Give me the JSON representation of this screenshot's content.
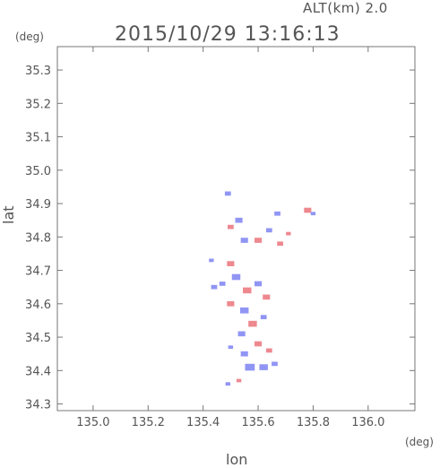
{
  "header": {
    "altitude_label": "ALT(km) 2.0",
    "timestamp": "2015/10/29 13:16:13"
  },
  "chart_data": {
    "type": "heatmap",
    "xlabel": "lon",
    "ylabel": "lat",
    "x_unit": "(deg)",
    "y_unit": "(deg)",
    "xlim": [
      134.87,
      136.17
    ],
    "ylim": [
      34.28,
      35.37
    ],
    "x_ticks": [
      135.0,
      135.2,
      135.4,
      135.6,
      135.8,
      136.0
    ],
    "x_tick_labels": [
      "135.0",
      "135.2",
      "135.4",
      "135.6",
      "135.8",
      "136.0"
    ],
    "y_ticks": [
      34.3,
      34.4,
      34.5,
      34.6,
      34.7,
      34.8,
      34.9,
      35.0,
      35.1,
      35.2,
      35.3
    ],
    "y_tick_labels": [
      "34.3",
      "34.4",
      "34.5",
      "34.6",
      "34.7",
      "34.8",
      "34.9",
      "35.0",
      "35.1",
      "35.2",
      "35.3"
    ],
    "colors": {
      "positive": "#e8606a",
      "negative": "#6b72f0",
      "axis": "#777777"
    },
    "regions": [
      {
        "lon": 135.49,
        "lat": 34.93,
        "sign": -1,
        "size": 0.01
      },
      {
        "lon": 135.53,
        "lat": 34.85,
        "sign": -1,
        "size": 0.012
      },
      {
        "lon": 135.55,
        "lat": 34.79,
        "sign": -1,
        "size": 0.012
      },
      {
        "lon": 135.5,
        "lat": 34.83,
        "sign": 1,
        "size": 0.01
      },
      {
        "lon": 135.6,
        "lat": 34.79,
        "sign": 1,
        "size": 0.012
      },
      {
        "lon": 135.64,
        "lat": 34.82,
        "sign": -1,
        "size": 0.01
      },
      {
        "lon": 135.67,
        "lat": 34.87,
        "sign": -1,
        "size": 0.01
      },
      {
        "lon": 135.68,
        "lat": 34.78,
        "sign": 1,
        "size": 0.01
      },
      {
        "lon": 135.71,
        "lat": 34.81,
        "sign": 1,
        "size": 0.008
      },
      {
        "lon": 135.78,
        "lat": 34.88,
        "sign": 1,
        "size": 0.012
      },
      {
        "lon": 135.8,
        "lat": 34.87,
        "sign": -1,
        "size": 0.008
      },
      {
        "lon": 135.43,
        "lat": 34.73,
        "sign": -1,
        "size": 0.008
      },
      {
        "lon": 135.5,
        "lat": 34.72,
        "sign": 1,
        "size": 0.012
      },
      {
        "lon": 135.52,
        "lat": 34.68,
        "sign": -1,
        "size": 0.014
      },
      {
        "lon": 135.47,
        "lat": 34.66,
        "sign": -1,
        "size": 0.01
      },
      {
        "lon": 135.56,
        "lat": 34.64,
        "sign": 1,
        "size": 0.014
      },
      {
        "lon": 135.6,
        "lat": 34.66,
        "sign": -1,
        "size": 0.012
      },
      {
        "lon": 135.63,
        "lat": 34.62,
        "sign": 1,
        "size": 0.012
      },
      {
        "lon": 135.55,
        "lat": 34.58,
        "sign": -1,
        "size": 0.014
      },
      {
        "lon": 135.5,
        "lat": 34.6,
        "sign": 1,
        "size": 0.012
      },
      {
        "lon": 135.44,
        "lat": 34.65,
        "sign": -1,
        "size": 0.01
      },
      {
        "lon": 135.58,
        "lat": 34.54,
        "sign": 1,
        "size": 0.014
      },
      {
        "lon": 135.54,
        "lat": 34.51,
        "sign": -1,
        "size": 0.012
      },
      {
        "lon": 135.62,
        "lat": 34.56,
        "sign": -1,
        "size": 0.01
      },
      {
        "lon": 135.5,
        "lat": 34.47,
        "sign": -1,
        "size": 0.008
      },
      {
        "lon": 135.6,
        "lat": 34.48,
        "sign": 1,
        "size": 0.012
      },
      {
        "lon": 135.64,
        "lat": 34.46,
        "sign": 1,
        "size": 0.01
      },
      {
        "lon": 135.55,
        "lat": 34.45,
        "sign": -1,
        "size": 0.012
      },
      {
        "lon": 135.57,
        "lat": 34.41,
        "sign": -1,
        "size": 0.016
      },
      {
        "lon": 135.62,
        "lat": 34.41,
        "sign": -1,
        "size": 0.014
      },
      {
        "lon": 135.66,
        "lat": 34.42,
        "sign": -1,
        "size": 0.01
      },
      {
        "lon": 135.53,
        "lat": 34.37,
        "sign": 1,
        "size": 0.008
      },
      {
        "lon": 135.49,
        "lat": 34.36,
        "sign": -1,
        "size": 0.008
      }
    ]
  }
}
